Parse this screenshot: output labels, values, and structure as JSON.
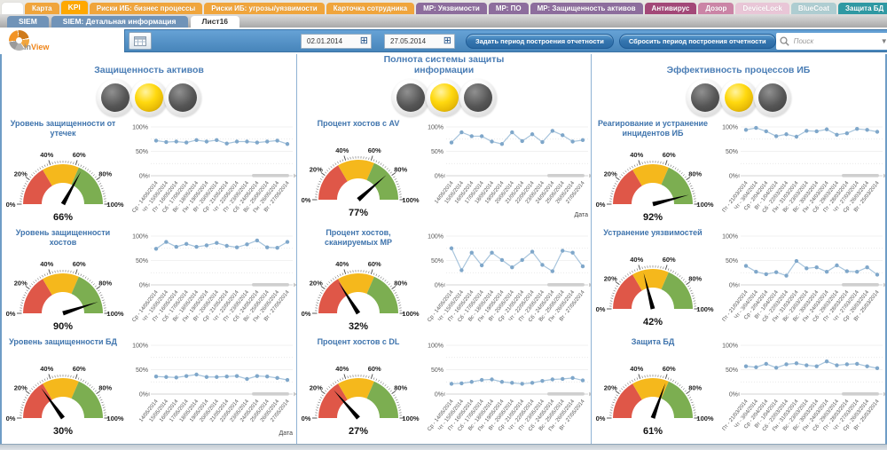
{
  "app": {
    "logo_prefix": "in",
    "logo_suffix": "View"
  },
  "tabs_row1": [
    {
      "label": "",
      "bg": "#ffffff",
      "fg": "#555555",
      "selected": false
    },
    {
      "label": "Карта",
      "bg": "#f0a53c",
      "fg": "#ffffff",
      "selected": false
    },
    {
      "label": "KPI",
      "bg": "#ffa800",
      "fg": "#ffffff",
      "selected": true
    },
    {
      "label": "Риски ИБ: бизнес процессы",
      "bg": "#f0a53c",
      "fg": "#ffffff",
      "selected": false
    },
    {
      "label": "Риски ИБ: угрозы/уязвимости",
      "bg": "#f0a53c",
      "fg": "#ffffff",
      "selected": false
    },
    {
      "label": "Карточка сотрудника",
      "bg": "#f0a53c",
      "fg": "#ffffff",
      "selected": false
    },
    {
      "label": "МР: Уязвимости",
      "bg": "#8d6d9d",
      "fg": "#ffffff",
      "selected": false
    },
    {
      "label": "МР: ПО",
      "bg": "#8d6d9d",
      "fg": "#ffffff",
      "selected": false
    },
    {
      "label": "МР: Защищенность активов",
      "bg": "#8d6d9d",
      "fg": "#ffffff",
      "selected": false
    },
    {
      "label": "Антивирус",
      "bg": "#a34878",
      "fg": "#ffffff",
      "selected": false
    },
    {
      "label": "Дозор",
      "bg": "#cb84a6",
      "fg": "#ffffff",
      "selected": false
    },
    {
      "label": "DeviceLock",
      "bg": "#e9c6d7",
      "fg": "#ffffff",
      "selected": false
    },
    {
      "label": "BlueCoat",
      "bg": "#aecdd1",
      "fg": "#ffffff",
      "selected": false
    },
    {
      "label": "Защита БД",
      "bg": "#2f99a3",
      "fg": "#ffffff",
      "selected": false
    }
  ],
  "tabs_row2": [
    {
      "label": "SIEM",
      "bg": "#7093b8",
      "fg": "#ffffff",
      "selected": false
    },
    {
      "label": "SIEM: Детальная информация",
      "bg": "#7093b8",
      "fg": "#ffffff",
      "selected": false
    },
    {
      "label": "Лист16",
      "bg": "#ffffff",
      "fg": "#333333",
      "selected": true
    }
  ],
  "toolbar": {
    "date_from": "02.01.2014",
    "date_to": "27.05.2014",
    "set_period_label": "Задать период построения отчетности",
    "reset_period_label": "Сбросить период построения отчетности",
    "search_placeholder": "Поиск",
    "calendar_icon": "calendar-icon",
    "search_icon": "search-icon"
  },
  "gauge_config": {
    "thresholds": [
      33,
      63
    ],
    "tick_labels": [
      "0%",
      "20%",
      "40%",
      "60%",
      "80%",
      "100%"
    ],
    "colors": {
      "red": "#df5748",
      "yellow": "#f5b81c",
      "green": "#7cae51",
      "needle": "#000000"
    }
  },
  "chart_config": {
    "y_ticks": [
      "0%",
      "50%",
      "100%"
    ],
    "colors": {
      "line": "#a7c4dc",
      "marker": "#7fa7ca"
    }
  },
  "columns": [
    {
      "title": "Защищенность активов",
      "traffic_light": [
        "off",
        "on",
        "off"
      ],
      "kpis": [
        {
          "title": "Уровень защищенности от утечек",
          "value": 66,
          "value_label": "66%",
          "chart": {
            "type": "line",
            "xlabel": "",
            "x_labels": [
              "Ср - 14/05/2014",
              "Чт - 15/05/2014",
              "Пт - 16/05/2014",
              "Сб - 17/05/2014",
              "Вс - 18/05/2014",
              "Пн - 19/05/2014",
              "Вт - 20/05/2014",
              "Ср - 21/05/2014",
              "Чт - 22/05/2014",
              "Пт - 23/05/2014",
              "Сб - 24/05/2014",
              "Вс - 25/05/2014",
              "Пн - 26/05/2014",
              "Вт - 27/05/2014"
            ],
            "values": [
              72,
              69,
              70,
              68,
              73,
              70,
              73,
              66,
              70,
              70,
              68,
              70,
              72,
              65
            ]
          }
        },
        {
          "title": "Уровень защищенности хостов",
          "value": 90,
          "value_label": "90%",
          "chart": {
            "type": "line",
            "xlabel": "",
            "x_labels": [
              "Ср - 14/05/2014",
              "Чт - 15/05/2014",
              "Пт - 16/05/2014",
              "Сб - 17/05/2014",
              "Вс - 18/05/2014",
              "Пн - 19/05/2014",
              "Вт - 20/05/2014",
              "Ср - 21/05/2014",
              "Чт - 22/05/2014",
              "Пт - 23/05/2014",
              "Сб - 24/05/2014",
              "Вс - 25/05/2014",
              "Пн - 26/05/2014",
              "Вт - 27/05/2014"
            ],
            "values": [
              74,
              88,
              78,
              84,
              78,
              81,
              86,
              80,
              77,
              83,
              91,
              77,
              76,
              88
            ]
          }
        },
        {
          "title": "Уровень защищенности БД",
          "value": 30,
          "value_label": "30%",
          "chart": {
            "type": "line",
            "xlabel": "Дата",
            "x_labels": [
              "14/05/2014",
              "15/05/2014",
              "16/05/2014",
              "17/05/2014",
              "18/05/2014",
              "19/05/2014",
              "20/05/2014",
              "21/05/2014",
              "22/05/2014",
              "23/05/2014",
              "24/05/2014",
              "25/05/2014",
              "26/05/2014",
              "27/05/2014"
            ],
            "values": [
              36,
              35,
              34,
              37,
              40,
              35,
              35,
              36,
              37,
              31,
              37,
              36,
              33,
              29
            ]
          }
        }
      ]
    },
    {
      "title": "Полнота системы защиты информации",
      "traffic_light": [
        "off",
        "on",
        "off"
      ],
      "kpis": [
        {
          "title": "Процент хостов с AV",
          "value": 77,
          "value_label": "77%",
          "chart": {
            "type": "line",
            "xlabel": "Дата",
            "x_labels": [
              "14/05/2014",
              "15/05/2014",
              "16/05/2014",
              "17/05/2014",
              "18/05/2014",
              "19/05/2014",
              "20/05/2014",
              "21/05/2014",
              "22/05/2014",
              "23/05/2014",
              "24/05/2014",
              "25/05/2014",
              "26/05/2014",
              "27/05/2014"
            ],
            "values": [
              68,
              89,
              81,
              81,
              70,
              65,
              89,
              71,
              85,
              69,
              92,
              83,
              70,
              73
            ]
          }
        },
        {
          "title": "Процент хостов, сканируемых МР",
          "value": 32,
          "value_label": "32%",
          "chart": {
            "type": "line",
            "xlabel": "",
            "x_labels": [
              "Ср - 14/05/2014",
              "Чт - 15/05/2014",
              "Пт - 16/05/2014",
              "Сб - 17/05/2014",
              "Вс - 18/05/2014",
              "Пн - 19/05/2014",
              "Вт - 20/05/2014",
              "Ср - 21/05/2014",
              "Чт - 22/05/2014",
              "Пт - 23/05/2014",
              "Сб - 24/05/2014",
              "Вс - 25/05/2014",
              "Пн - 26/05/2014",
              "Вт - 27/05/2014"
            ],
            "values": [
              75,
              30,
              66,
              40,
              66,
              51,
              36,
              51,
              68,
              41,
              28,
              70,
              66,
              38
            ]
          }
        },
        {
          "title": "Процент хостов с DL",
          "value": 27,
          "value_label": "27%",
          "chart": {
            "type": "line",
            "xlabel": "",
            "x_labels": [
              "Ср - 14/05/2014",
              "Чт - 15/05/2014",
              "Пт - 16/05/2014",
              "Сб - 17/05/2014",
              "Вс - 18/05/2014",
              "Пн - 19/05/2014",
              "Вт - 20/05/2014",
              "Ср - 21/05/2014",
              "Чт - 22/05/2014",
              "Пт - 23/05/2014",
              "Сб - 24/05/2014",
              "Вс - 25/05/2014",
              "Пн - 26/05/2014",
              "Вт - 27/05/2014"
            ],
            "values": [
              21,
              22,
              25,
              29,
              30,
              25,
              23,
              21,
              23,
              27,
              30,
              31,
              33,
              28
            ]
          }
        }
      ]
    },
    {
      "title": "Эффективность процессов ИБ",
      "traffic_light": [
        "off",
        "on",
        "off"
      ],
      "kpis": [
        {
          "title": "Реагирование и устранение инцидентов ИБ",
          "value": 92,
          "value_label": "92%",
          "chart": {
            "type": "line",
            "xlabel": "",
            "x_labels": [
              "Пт - 21/03/2014",
              "Чт - 3/04/2014",
              "Ср - 2/04/2014",
              "Вт - 1/04/2014",
              "Сб - 22/03/2014",
              "Пн - 31/03/2014",
              "Вс - 23/03/2014",
              "Вс - 30/03/2014",
              "Пн - 24/03/2014",
              "Сб - 29/03/2014",
              "Пт - 28/03/2014",
              "Чт - 27/03/2014",
              "Ср - 26/03/2014",
              "Вт - 25/03/2014"
            ],
            "values": [
              94,
              98,
              91,
              81,
              85,
              80,
              92,
              91,
              95,
              84,
              87,
              96,
              94,
              90
            ]
          }
        },
        {
          "title": "Устранение уязвимостей",
          "value": 42,
          "value_label": "42%",
          "chart": {
            "type": "line",
            "xlabel": "",
            "x_labels": [
              "Пт - 21/03/2014",
              "Чт - 3/04/2014",
              "Ср - 2/04/2014",
              "Вт - 1/04/2014",
              "Сб - 22/03/2014",
              "Пн - 31/03/2014",
              "Вс - 23/03/2014",
              "Вс - 30/03/2014",
              "Пн - 24/03/2014",
              "Сб - 29/03/2014",
              "Пт - 28/03/2014",
              "Чт - 27/03/2014",
              "Ср - 26/03/2014",
              "Вт - 25/03/2014"
            ],
            "values": [
              39,
              27,
              22,
              26,
              19,
              49,
              34,
              36,
              27,
              40,
              28,
              27,
              36,
              21
            ]
          }
        },
        {
          "title": "Защита БД",
          "value": 61,
          "value_label": "61%",
          "chart": {
            "type": "line",
            "xlabel": "",
            "x_labels": [
              "Пт - 21/03/2014",
              "Чт - 3/04/2014",
              "Ср - 2/04/2014",
              "Вт - 1/04/2014",
              "Сб - 22/03/2014",
              "Пн - 31/03/2014",
              "Вс - 23/03/2014",
              "Вс - 30/03/2014",
              "Пн - 24/03/2014",
              "Сб - 29/03/2014",
              "Пт - 28/03/2014",
              "Чт - 27/03/2014",
              "Ср - 26/03/2014",
              "Вт - 25/03/2014"
            ],
            "values": [
              57,
              55,
              62,
              54,
              61,
              63,
              59,
              57,
              67,
              59,
              61,
              62,
              57,
              53
            ]
          }
        }
      ]
    }
  ]
}
